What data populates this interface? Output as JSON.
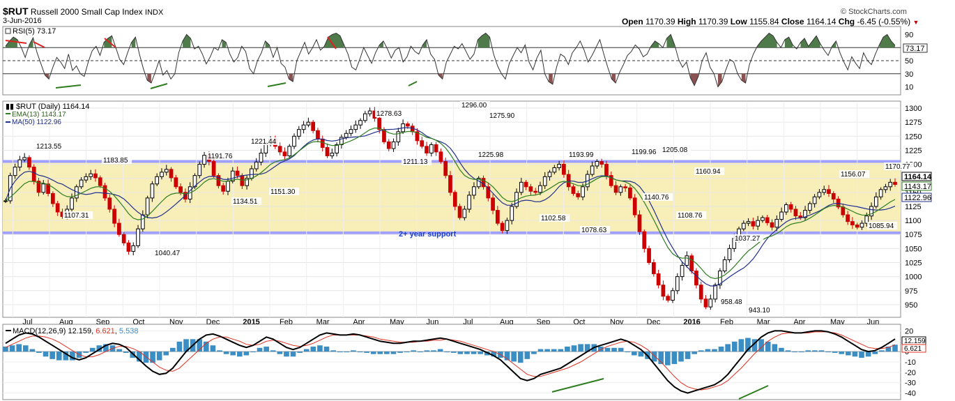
{
  "header": {
    "symbol": "$RUT",
    "name": "Russell 2000 Small Cap Index",
    "exchange": "INDX",
    "date": "3-Jun-2016",
    "credit": "© StockCharts.com",
    "open_label": "Open",
    "open": "1170.39",
    "high_label": "High",
    "high": "1170.39",
    "low_label": "Low",
    "low": "1155.84",
    "close_label": "Close",
    "close": "1164.14",
    "chg_label": "Chg",
    "chg": "-6.45 (-0.55%)",
    "chg_arrow": "▼"
  },
  "colors": {
    "price_up": "#000000",
    "price_down": "#cc0000",
    "ema": "#2e7d1e",
    "ma": "#1f2f8a",
    "band": "#f8eeb8",
    "band_line": "#9f9fff",
    "rsi_over": "#4f7a4a",
    "rsi_under": "#8a5252",
    "macd_line": "#000000",
    "signal_line": "#e03020",
    "histogram": "#3a8ec4",
    "trend_green": "#2e7d1e",
    "trend_red": "#e02020"
  },
  "chart_data": [
    {
      "type": "line",
      "panel": "rsi",
      "title": "RSI(5) 73.17",
      "indicator": "RSI(5)",
      "last_value": "73.17",
      "y_ticks": [
        10,
        30,
        50,
        70,
        90
      ],
      "ylim": [
        0,
        100
      ],
      "reference_levels": [
        30,
        50,
        70
      ],
      "values": [
        72,
        80,
        86,
        82,
        70,
        55,
        74,
        85,
        62,
        45,
        28,
        22,
        40,
        55,
        48,
        38,
        60,
        35,
        42,
        30,
        26,
        48,
        65,
        72,
        58,
        78,
        84,
        88,
        70,
        52,
        44,
        62,
        78,
        86,
        60,
        38,
        20,
        16,
        32,
        50,
        28,
        35,
        22,
        30,
        62,
        80,
        90,
        84,
        68,
        72,
        60,
        45,
        56,
        70,
        66,
        82,
        78,
        60,
        48,
        55,
        72,
        64,
        38,
        30,
        50,
        62,
        80,
        74,
        55,
        70,
        46,
        40,
        22,
        18,
        50,
        64,
        78,
        60,
        70,
        82,
        66,
        72,
        86,
        90,
        92,
        88,
        74,
        60,
        40,
        36,
        52,
        70,
        58,
        46,
        62,
        74,
        80,
        68,
        54,
        66,
        70,
        48,
        56,
        72,
        64,
        60,
        74,
        82,
        60,
        52,
        28,
        22,
        48,
        60,
        72,
        68,
        76,
        64,
        52,
        60,
        82,
        88,
        92,
        86,
        60,
        42,
        30,
        22,
        46,
        58,
        70,
        62,
        74,
        48,
        36,
        54,
        66,
        30,
        18,
        14,
        40,
        60,
        56,
        44,
        62,
        70,
        80,
        66,
        48,
        58,
        70,
        82,
        60,
        40,
        22,
        16,
        32,
        44,
        58,
        64,
        74,
        68,
        56,
        60,
        72,
        80,
        76,
        70,
        84,
        90,
        74,
        52,
        40,
        48,
        24,
        12,
        26,
        50,
        62,
        40,
        30,
        10,
        18,
        36,
        52,
        48,
        30,
        20,
        16,
        44,
        60,
        72,
        80,
        86,
        92,
        88,
        78,
        70,
        82,
        86,
        74,
        68,
        78,
        84,
        72,
        80,
        88,
        76,
        66,
        58,
        72,
        80,
        62,
        48,
        36,
        56,
        46,
        38,
        62,
        50,
        44,
        60,
        74,
        86,
        90,
        80,
        73.17
      ],
      "annotations": [
        "red descending RSI highs",
        "green rising RSI lows"
      ]
    },
    {
      "type": "candlestick",
      "panel": "price",
      "title": "$RUT (Daily) 1164.14",
      "series": [
        {
          "name": "EMA(13)",
          "label": "EMA(13) 1143.17",
          "last": 1143.17
        },
        {
          "name": "MA(50)",
          "label": "MA(50) 1122.96",
          "last": 1122.96
        }
      ],
      "y_ticks": [
        950,
        975,
        1000,
        1025,
        1050,
        1075,
        1100,
        1125,
        1150,
        1175,
        1200,
        1225,
        1250,
        1275,
        1300
      ],
      "ylim": [
        930,
        1310
      ],
      "x_labels": [
        "Jul",
        "Aug",
        "Sep",
        "Oct",
        "Nov",
        "Dec",
        "2015",
        "Feb",
        "Mar",
        "Apr",
        "May",
        "Jun",
        "Jul",
        "Aug",
        "Sep",
        "Oct",
        "Nov",
        "Dec",
        "2016",
        "Feb",
        "Mar",
        "Apr",
        "May",
        "Jun"
      ],
      "support_band": {
        "lower": 1078,
        "upper": 1205,
        "label": "2+ year support"
      },
      "closes": [
        1135,
        1180,
        1195,
        1208,
        1212,
        1195,
        1170,
        1150,
        1165,
        1148,
        1130,
        1115,
        1107,
        1120,
        1140,
        1160,
        1172,
        1178,
        1183,
        1176,
        1162,
        1140,
        1120,
        1095,
        1075,
        1060,
        1045,
        1055,
        1085,
        1110,
        1140,
        1165,
        1178,
        1186,
        1191,
        1176,
        1160,
        1150,
        1138,
        1160,
        1180,
        1200,
        1216,
        1205,
        1180,
        1162,
        1152,
        1170,
        1188,
        1180,
        1162,
        1175,
        1192,
        1204,
        1220,
        1236,
        1245,
        1232,
        1222,
        1215,
        1232,
        1250,
        1262,
        1270,
        1275,
        1260,
        1245,
        1230,
        1215,
        1220,
        1235,
        1248,
        1255,
        1262,
        1270,
        1278,
        1290,
        1295,
        1282,
        1262,
        1240,
        1228,
        1240,
        1258,
        1272,
        1268,
        1258,
        1242,
        1232,
        1220,
        1235,
        1222,
        1205,
        1180,
        1150,
        1125,
        1105,
        1120,
        1145,
        1160,
        1175,
        1160,
        1140,
        1118,
        1095,
        1082,
        1100,
        1125,
        1150,
        1168,
        1160,
        1152,
        1150,
        1162,
        1178,
        1186,
        1194,
        1200,
        1182,
        1160,
        1148,
        1142,
        1160,
        1182,
        1197,
        1205,
        1200,
        1180,
        1162,
        1150,
        1160,
        1158,
        1140,
        1110,
        1080,
        1050,
        1025,
        1005,
        985,
        965,
        958,
        975,
        1000,
        1020,
        1037,
        1010,
        985,
        960,
        946,
        960,
        985,
        1010,
        1030,
        1050,
        1068,
        1085,
        1095,
        1098,
        1090,
        1100,
        1105,
        1096,
        1088,
        1102,
        1115,
        1128,
        1120,
        1108,
        1105,
        1118,
        1130,
        1142,
        1150,
        1155,
        1148,
        1138,
        1124,
        1110,
        1098,
        1092,
        1088,
        1095,
        1108,
        1125,
        1142,
        1155,
        1160,
        1168,
        1164.14
      ],
      "annotations": [
        "1213.55",
        "1183.85",
        "1107.31",
        "1040.47",
        "1191.76",
        "1221.44",
        "1134.51",
        "1151.30",
        "1278.63",
        "1211.13",
        "1296.00",
        "1275.90",
        "1225.98",
        "1193.99",
        "1102.58",
        "1078.63",
        "1199.96",
        "1205.08",
        "1140.76",
        "1160.94",
        "1108.76",
        "1037.27",
        "958.48",
        "943.10",
        "1156.07",
        "1085.94",
        "1170.77"
      ]
    },
    {
      "type": "line",
      "panel": "macd",
      "title": "MACD(12,26,9) 12.159, 6.621, 5.538",
      "indicator_label": "MACD(12,26,9)",
      "macd_value": "12.159",
      "signal_value": "6.621",
      "hist_value": "5.538",
      "y_ticks": [
        -40,
        -30,
        -20,
        -10,
        0,
        10,
        20
      ],
      "ylim": [
        -45,
        25
      ],
      "macd": [
        8,
        12,
        16,
        18,
        17,
        14,
        10,
        6,
        2,
        -2,
        -6,
        -8,
        -6,
        -2,
        2,
        6,
        8,
        7,
        4,
        -2,
        -8,
        -14,
        -19,
        -22,
        -21,
        -16,
        -8,
        0,
        6,
        12,
        16,
        17,
        15,
        12,
        9,
        6,
        4,
        6,
        10,
        14,
        12,
        8,
        4,
        2,
        4,
        8,
        12,
        16,
        18,
        17,
        16,
        16,
        17,
        16,
        14,
        12,
        10,
        9,
        8,
        8,
        9,
        10,
        10,
        11,
        12,
        13,
        12,
        10,
        8,
        6,
        4,
        2,
        -1,
        -4,
        -8,
        -14,
        -20,
        -26,
        -28,
        -26,
        -22,
        -20,
        -18,
        -16,
        -12,
        -8,
        -4,
        0,
        4,
        6,
        8,
        10,
        12,
        10,
        6,
        2,
        -4,
        -12,
        -20,
        -28,
        -34,
        -38,
        -40,
        -38,
        -36,
        -34,
        -32,
        -28,
        -22,
        -14,
        -6,
        2,
        8,
        14,
        18,
        20,
        20,
        19,
        18,
        18,
        19,
        20,
        20,
        19,
        17,
        14,
        10,
        6,
        2,
        0,
        1,
        4,
        8,
        12.159
      ],
      "signal": [
        4,
        7,
        10,
        13,
        15,
        15,
        14,
        12,
        9,
        5,
        1,
        -3,
        -5,
        -5,
        -3,
        0,
        3,
        5,
        5,
        3,
        0,
        -5,
        -10,
        -15,
        -18,
        -19,
        -16,
        -10,
        -4,
        2,
        8,
        12,
        14,
        14,
        12,
        10,
        7,
        6,
        7,
        10,
        11,
        10,
        8,
        6,
        5,
        6,
        8,
        11,
        14,
        16,
        16,
        16,
        16,
        16,
        15,
        14,
        12,
        11,
        10,
        9,
        9,
        9,
        10,
        10,
        11,
        11,
        12,
        11,
        10,
        8,
        6,
        4,
        2,
        0,
        -3,
        -7,
        -12,
        -17,
        -22,
        -24,
        -24,
        -22,
        -20,
        -18,
        -16,
        -13,
        -10,
        -6,
        -2,
        2,
        5,
        7,
        9,
        10,
        9,
        6,
        2,
        -4,
        -10,
        -17,
        -24,
        -30,
        -34,
        -36,
        -37,
        -36,
        -34,
        -32,
        -28,
        -22,
        -16,
        -9,
        -2,
        4,
        10,
        14,
        17,
        18,
        18,
        18,
        18,
        19,
        19,
        19,
        18,
        16,
        13,
        10,
        7,
        4,
        3,
        3,
        4,
        6.621
      ],
      "annotations": [
        "green rising MACD lows"
      ]
    }
  ]
}
